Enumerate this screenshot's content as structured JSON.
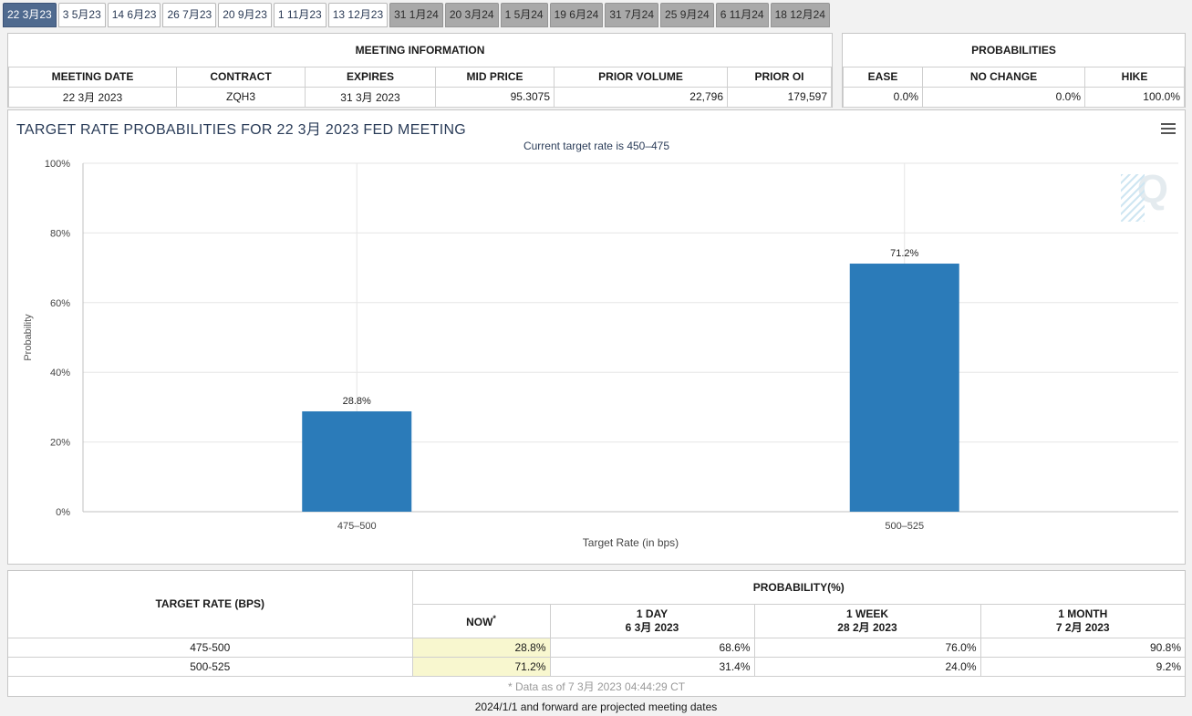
{
  "tabs": [
    {
      "label": "22 3月23",
      "state": "active"
    },
    {
      "label": "3 5月23",
      "state": "normal"
    },
    {
      "label": "14 6月23",
      "state": "normal"
    },
    {
      "label": "26 7月23",
      "state": "normal"
    },
    {
      "label": "20 9月23",
      "state": "normal"
    },
    {
      "label": "1 11月23",
      "state": "normal"
    },
    {
      "label": "13 12月23",
      "state": "normal"
    },
    {
      "label": "31 1月24",
      "state": "future"
    },
    {
      "label": "20 3月24",
      "state": "future"
    },
    {
      "label": "1 5月24",
      "state": "future"
    },
    {
      "label": "19 6月24",
      "state": "future"
    },
    {
      "label": "31 7月24",
      "state": "future"
    },
    {
      "label": "25 9月24",
      "state": "future"
    },
    {
      "label": "6 11月24",
      "state": "future"
    },
    {
      "label": "18 12月24",
      "state": "future"
    }
  ],
  "meeting_info": {
    "title": "MEETING INFORMATION",
    "headers": [
      "MEETING DATE",
      "CONTRACT",
      "EXPIRES",
      "MID PRICE",
      "PRIOR VOLUME",
      "PRIOR OI"
    ],
    "values": [
      "22 3月 2023",
      "ZQH3",
      "31 3月 2023",
      "95.3075",
      "22,796",
      "179,597"
    ]
  },
  "probabilities": {
    "title": "PROBABILITIES",
    "headers": [
      "EASE",
      "NO CHANGE",
      "HIKE"
    ],
    "values": [
      "0.0%",
      "0.0%",
      "100.0%"
    ]
  },
  "chart": {
    "title": "TARGET RATE PROBABILITIES FOR 22 3月 2023 FED MEETING",
    "subtitle": "Current target rate is 450–475"
  },
  "chart_data": {
    "type": "bar",
    "categories": [
      "475–500",
      "500–525"
    ],
    "values": [
      28.8,
      71.2
    ],
    "data_labels": [
      "28.8%",
      "71.2%"
    ],
    "xlabel": "Target Rate (in bps)",
    "ylabel": "Probability",
    "ylim": [
      0,
      100
    ],
    "yticks": [
      "0%",
      "20%",
      "40%",
      "60%",
      "80%",
      "100%"
    ],
    "bar_color": "#2b7bb9",
    "grid": true
  },
  "prob_table": {
    "left_header": "TARGET RATE (BPS)",
    "group_header": "PROBABILITY(%)",
    "columns": [
      {
        "line1": "NOW",
        "line2": "",
        "sup": "*"
      },
      {
        "line1": "1 DAY",
        "line2": "6 3月 2023",
        "sup": ""
      },
      {
        "line1": "1 WEEK",
        "line2": "28 2月 2023",
        "sup": ""
      },
      {
        "line1": "1 MONTH",
        "line2": "7 2月 2023",
        "sup": ""
      }
    ],
    "rows": [
      {
        "rate": "475-500",
        "values": [
          "28.8%",
          "68.6%",
          "76.0%",
          "90.8%"
        ]
      },
      {
        "rate": "500-525",
        "values": [
          "71.2%",
          "31.4%",
          "24.0%",
          "9.2%"
        ]
      }
    ],
    "note": "* Data as of 7 3月 2023 04:44:29 CT"
  },
  "footer": "2024/1/1 and forward are projected meeting dates"
}
